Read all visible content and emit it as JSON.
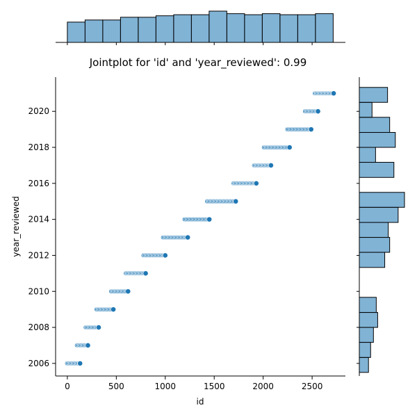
{
  "chart_data": {
    "type": "scatter",
    "title": "Jointplot for 'id' and 'year_reviewed': 0.99",
    "xlabel": "id",
    "ylabel": "year_reviewed",
    "xlim": [
      -120,
      2840
    ],
    "ylim": [
      2005.3,
      2021.9
    ],
    "xticks": [
      0,
      500,
      1000,
      1500,
      2000,
      2500
    ],
    "yticks": [
      2006,
      2008,
      2010,
      2012,
      2014,
      2016,
      2018,
      2020
    ],
    "point_color": "#1f77b4",
    "hist_color": "#5799c7",
    "year_id_ranges": [
      {
        "year": 2006,
        "id_min": 0,
        "id_max": 130
      },
      {
        "year": 2007,
        "id_min": 100,
        "id_max": 210
      },
      {
        "year": 2008,
        "id_min": 190,
        "id_max": 320
      },
      {
        "year": 2009,
        "id_min": 300,
        "id_max": 470
      },
      {
        "year": 2010,
        "id_min": 450,
        "id_max": 620
      },
      {
        "year": 2011,
        "id_min": 600,
        "id_max": 800
      },
      {
        "year": 2012,
        "id_min": 780,
        "id_max": 1000
      },
      {
        "year": 2013,
        "id_min": 980,
        "id_max": 1230
      },
      {
        "year": 2014,
        "id_min": 1200,
        "id_max": 1450
      },
      {
        "year": 2015,
        "id_min": 1430,
        "id_max": 1720
      },
      {
        "year": 2016,
        "id_min": 1700,
        "id_max": 1930
      },
      {
        "year": 2017,
        "id_min": 1910,
        "id_max": 2080
      },
      {
        "year": 2018,
        "id_min": 2010,
        "id_max": 2270
      },
      {
        "year": 2019,
        "id_min": 2250,
        "id_max": 2490
      },
      {
        "year": 2020,
        "id_min": 2430,
        "id_max": 2560
      },
      {
        "year": 2021,
        "id_min": 2530,
        "id_max": 2720
      }
    ],
    "x_histogram": {
      "bin_edges": [
        0,
        181,
        362,
        543,
        724,
        905,
        1086,
        1267,
        1448,
        1629,
        1810,
        1991,
        2172,
        2353,
        2534,
        2715
      ],
      "counts": [
        96,
        106,
        106,
        119,
        119,
        126,
        131,
        131,
        148,
        136,
        131,
        136,
        131,
        131,
        136
      ]
    },
    "y_histogram": {
      "bins": [
        {
          "lo": 2005.5,
          "hi": 2006.33,
          "count": 13
        },
        {
          "lo": 2006.33,
          "hi": 2007.17,
          "count": 16
        },
        {
          "lo": 2007.17,
          "hi": 2008.0,
          "count": 20
        },
        {
          "lo": 2008.0,
          "hi": 2008.83,
          "count": 26
        },
        {
          "lo": 2008.83,
          "hi": 2009.67,
          "count": 24
        },
        {
          "lo": 2011.33,
          "hi": 2012.17,
          "count": 36
        },
        {
          "lo": 2012.17,
          "hi": 2013.0,
          "count": 43
        },
        {
          "lo": 2013.0,
          "hi": 2013.83,
          "count": 41
        },
        {
          "lo": 2013.83,
          "hi": 2014.67,
          "count": 55
        },
        {
          "lo": 2014.67,
          "hi": 2015.5,
          "count": 64
        },
        {
          "lo": 2016.33,
          "hi": 2017.17,
          "count": 49
        },
        {
          "lo": 2017.17,
          "hi": 2018.0,
          "count": 23
        },
        {
          "lo": 2018.0,
          "hi": 2018.83,
          "count": 51
        },
        {
          "lo": 2018.83,
          "hi": 2019.67,
          "count": 43
        },
        {
          "lo": 2019.67,
          "hi": 2020.5,
          "count": 18
        },
        {
          "lo": 2020.5,
          "hi": 2021.33,
          "count": 40
        }
      ]
    }
  }
}
